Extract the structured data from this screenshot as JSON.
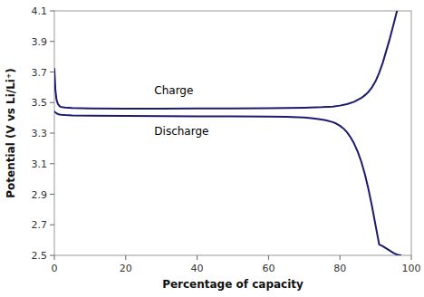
{
  "chart_data": {
    "type": "line",
    "xlabel": "Percentage of capacity",
    "ylabel": "Potential (V vs Li/Li⁺)",
    "series": [
      {
        "color": "#1a1a6e",
        "x": [
          0,
          0.3,
          0.6,
          1,
          1.5,
          2,
          3,
          5,
          10,
          20,
          30,
          40,
          50,
          60,
          65,
          70,
          75,
          78,
          80,
          82,
          84,
          86,
          87,
          88,
          89,
          90,
          91,
          92,
          93,
          94,
          95,
          96
        ],
        "values": [
          3.72,
          3.58,
          3.52,
          3.49,
          3.475,
          3.471,
          3.468,
          3.465,
          3.462,
          3.46,
          3.46,
          3.461,
          3.462,
          3.463,
          3.464,
          3.466,
          3.47,
          3.474,
          3.48,
          3.49,
          3.505,
          3.53,
          3.548,
          3.57,
          3.6,
          3.64,
          3.695,
          3.76,
          3.84,
          3.92,
          4.01,
          4.1
        ]
      },
      {
        "color": "#1a1a6e",
        "x": [
          0,
          0.3,
          0.6,
          1,
          1.5,
          2,
          3,
          5,
          10,
          20,
          30,
          40,
          50,
          60,
          65,
          70,
          72,
          74,
          76,
          78,
          79,
          80,
          81,
          82,
          83,
          84,
          85,
          86,
          87,
          88,
          89,
          90,
          91,
          92,
          93,
          94,
          95,
          96,
          97
        ],
        "values": [
          3.44,
          3.435,
          3.43,
          3.425,
          3.422,
          3.42,
          3.418,
          3.416,
          3.414,
          3.412,
          3.411,
          3.41,
          3.409,
          3.408,
          3.406,
          3.402,
          3.398,
          3.392,
          3.384,
          3.372,
          3.362,
          3.348,
          3.33,
          3.305,
          3.272,
          3.23,
          3.178,
          3.112,
          3.03,
          2.932,
          2.82,
          2.695,
          2.57,
          2.56,
          2.545,
          2.53,
          2.516,
          2.505,
          2.5
        ]
      }
    ],
    "annotations": [
      {
        "text": "Charge",
        "x": 28,
        "y": 3.535
      },
      {
        "text": "Discharge",
        "x": 28,
        "y": 3.355
      }
    ],
    "xlim": [
      0,
      100
    ],
    "ylim": [
      2.5,
      4.1
    ],
    "xticks": [
      0,
      20,
      40,
      60,
      80,
      100
    ],
    "yticks": [
      2.5,
      2.7,
      2.9,
      3.1,
      3.3,
      3.5,
      3.7,
      3.9,
      4.1
    ],
    "grid": false
  }
}
